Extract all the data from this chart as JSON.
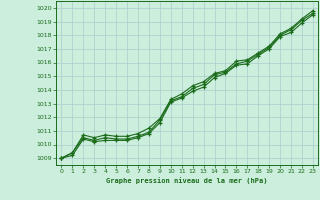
{
  "bg_color": "#cceedd",
  "grid_color": "#aacccc",
  "line_color": "#1a6b1a",
  "xlabel": "Graphe pression niveau de la mer (hPa)",
  "ylim": [
    1008.5,
    1020.5
  ],
  "xlim": [
    -0.5,
    23.5
  ],
  "yticks": [
    1009,
    1010,
    1011,
    1012,
    1013,
    1014,
    1015,
    1016,
    1017,
    1018,
    1019,
    1020
  ],
  "xticks": [
    0,
    1,
    2,
    3,
    4,
    5,
    6,
    7,
    8,
    9,
    10,
    11,
    12,
    13,
    14,
    15,
    16,
    17,
    18,
    19,
    20,
    21,
    22,
    23
  ],
  "series1": [
    1009.0,
    1009.4,
    1010.7,
    1010.5,
    1010.7,
    1010.6,
    1010.6,
    1010.8,
    1011.2,
    1011.9,
    1013.3,
    1013.7,
    1014.3,
    1014.6,
    1015.2,
    1015.4,
    1016.1,
    1016.2,
    1016.7,
    1017.2,
    1018.1,
    1018.5,
    1019.2,
    1019.8
  ],
  "series2": [
    1009.0,
    1009.4,
    1010.5,
    1010.3,
    1010.5,
    1010.4,
    1010.4,
    1010.6,
    1010.9,
    1011.8,
    1013.2,
    1013.5,
    1014.1,
    1014.4,
    1015.1,
    1015.3,
    1015.9,
    1016.1,
    1016.6,
    1017.1,
    1018.0,
    1018.4,
    1019.1,
    1019.6
  ],
  "series3": [
    1009.0,
    1009.2,
    1010.4,
    1010.2,
    1010.3,
    1010.3,
    1010.3,
    1010.5,
    1010.8,
    1011.6,
    1013.1,
    1013.4,
    1013.9,
    1014.2,
    1014.9,
    1015.2,
    1015.8,
    1015.9,
    1016.5,
    1017.0,
    1017.9,
    1018.2,
    1018.9,
    1019.5
  ]
}
